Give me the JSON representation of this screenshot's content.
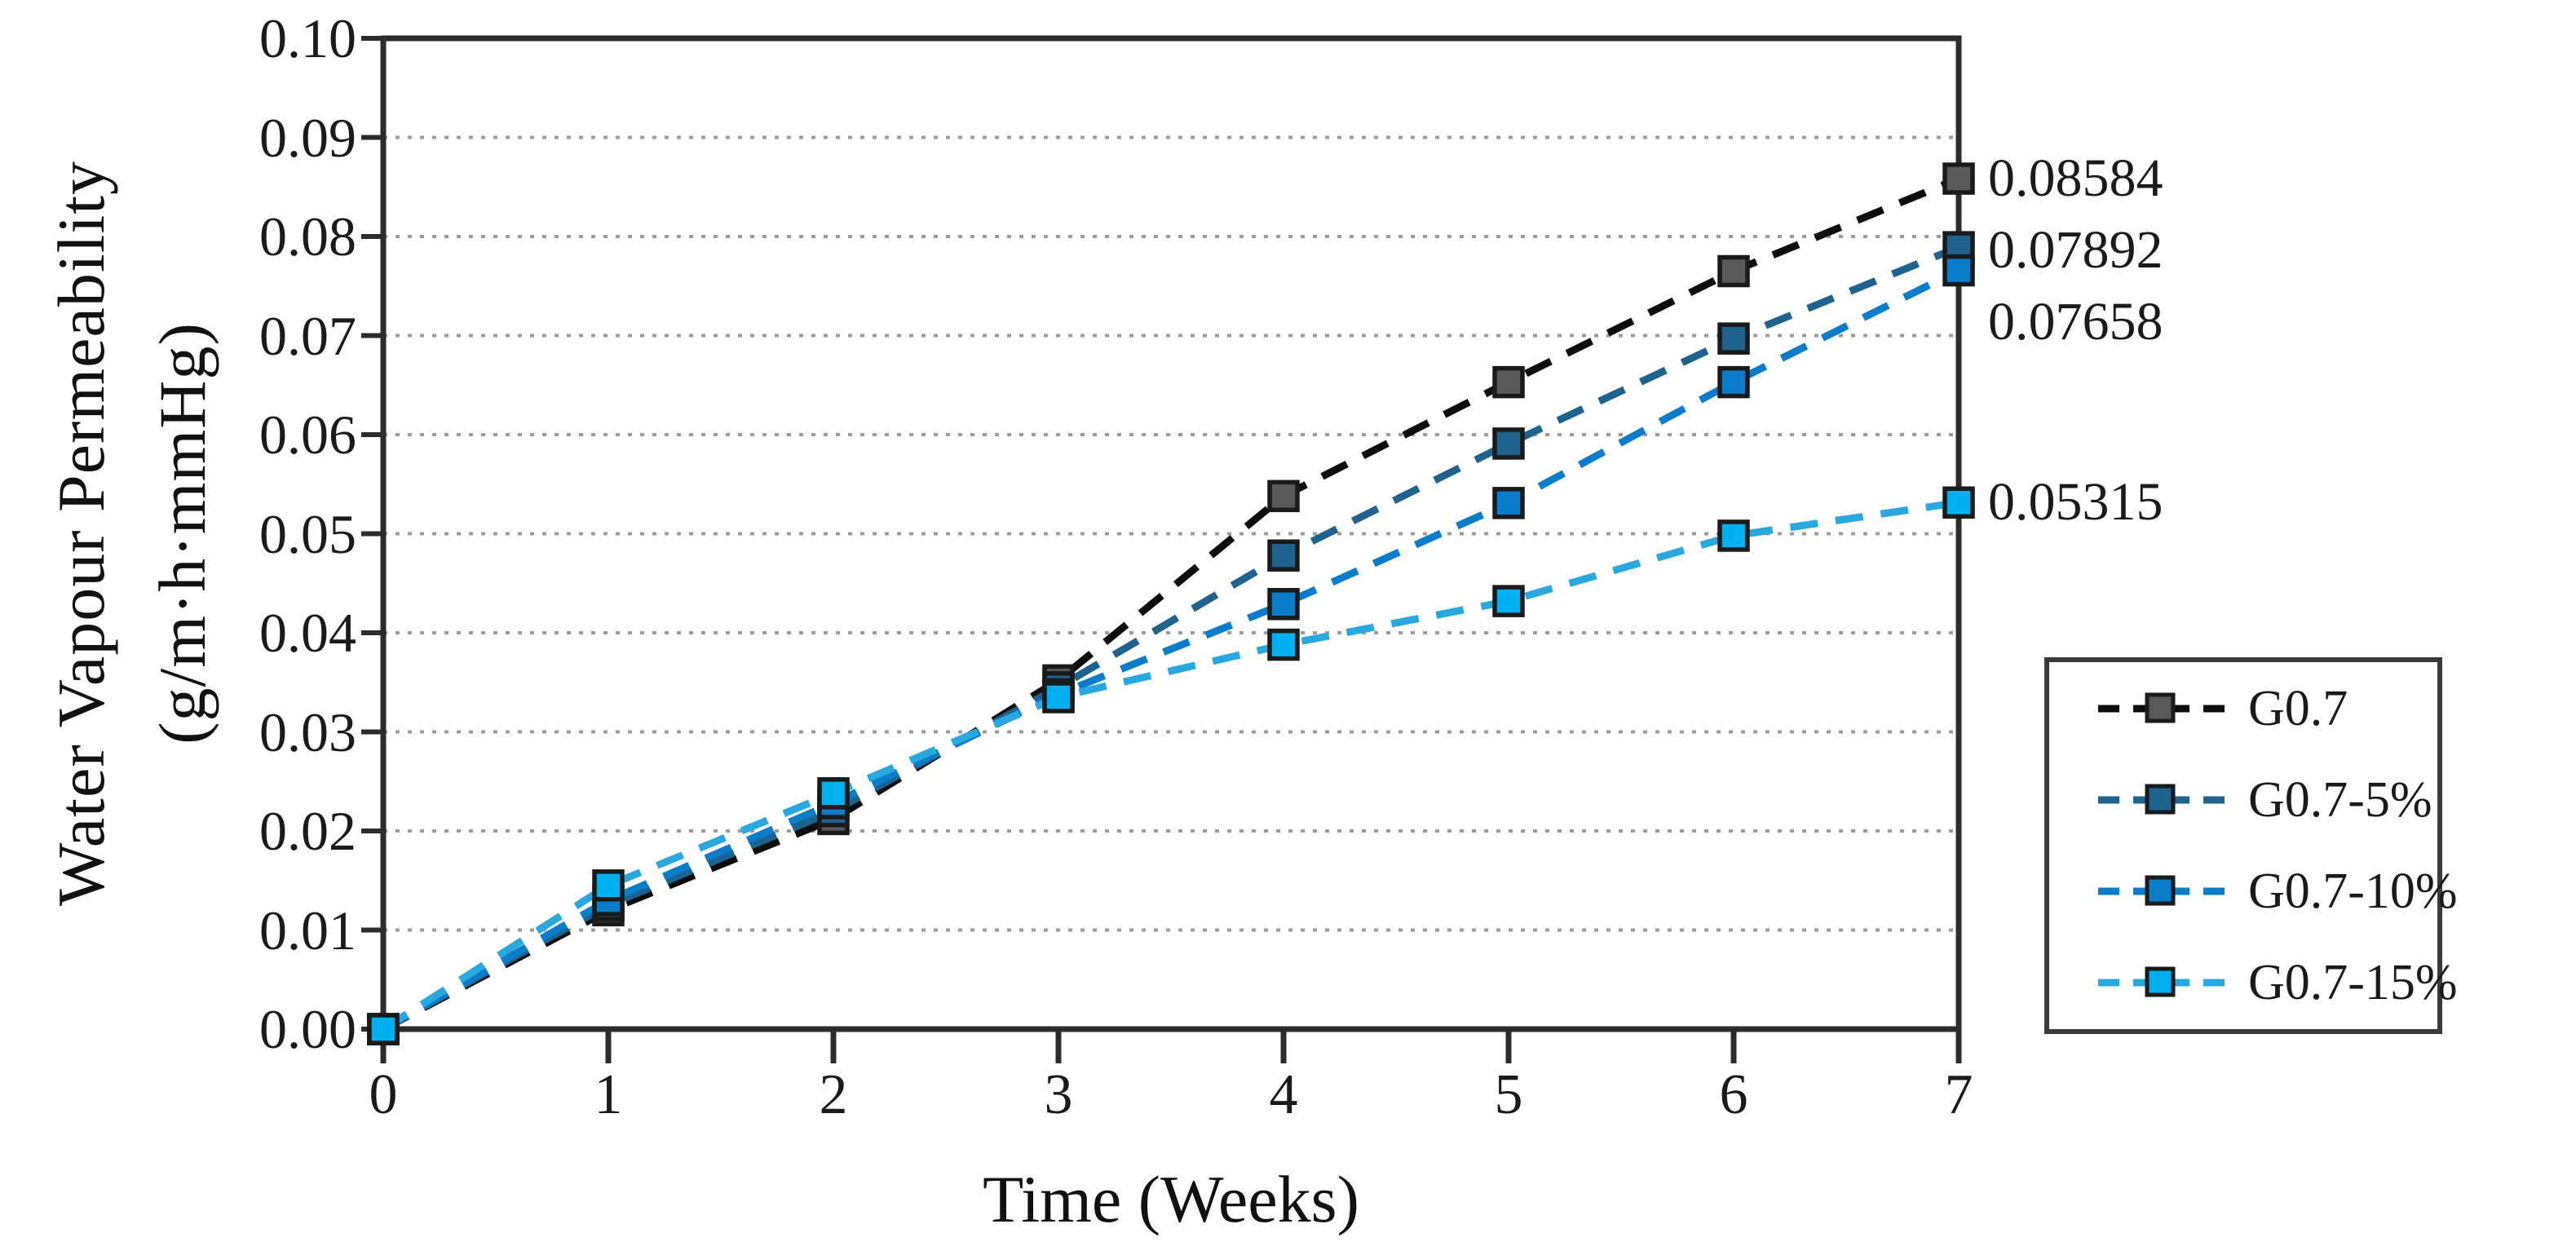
{
  "chart_data": {
    "type": "line",
    "title": "",
    "xlabel": "Time (Weeks)",
    "ylabel_line1": "Water Vapour Permeability",
    "ylabel_line2": "(g/m·h·mmHg)",
    "x": [
      0,
      1,
      2,
      3,
      4,
      5,
      6,
      7
    ],
    "xlim": [
      0,
      7
    ],
    "ylim": [
      0.0,
      0.1
    ],
    "x_tick_labels": [
      "0",
      "1",
      "2",
      "3",
      "4",
      "5",
      "6",
      "7"
    ],
    "y_tick_labels": [
      "0.00",
      "0.01",
      "0.02",
      "0.03",
      "0.04",
      "0.05",
      "0.06",
      "0.07",
      "0.08",
      "0.09",
      "0.10"
    ],
    "grid": "horizontal-dotted",
    "legend_position": "outside-right-bottom",
    "series": [
      {
        "name": "G0.7",
        "line_color": "#0d0d0d",
        "marker_color": "#595959",
        "values": [
          0.0,
          0.012,
          0.0212,
          0.0352,
          0.0538,
          0.0653,
          0.0765,
          0.08584
        ],
        "end_label": "0.08584"
      },
      {
        "name": "G0.7-5%",
        "line_color": "#1F628E",
        "marker_color": "#1F628E",
        "values": [
          0.0,
          0.0125,
          0.022,
          0.0345,
          0.0478,
          0.0591,
          0.0697,
          0.07892
        ],
        "end_label": "0.07892"
      },
      {
        "name": "G0.7-10%",
        "line_color": "#0A7CC9",
        "marker_color": "#0A7CC9",
        "values": [
          0.0,
          0.013,
          0.0228,
          0.0338,
          0.0429,
          0.0531,
          0.0653,
          0.07658
        ],
        "end_label": "0.07658"
      },
      {
        "name": "G0.7-15%",
        "line_color": "#29A8E0",
        "marker_color": "#00B0F0",
        "values": [
          0.0,
          0.0145,
          0.0238,
          0.0335,
          0.0388,
          0.0432,
          0.0498,
          0.05315
        ],
        "end_label": "0.05315"
      }
    ],
    "colors": {
      "gridline": "#9b9b9b",
      "axis": "#2b2b2b",
      "marker_edge": "#1a1a1a",
      "legend_border": "#3a3a3a",
      "text": "#1a1a1a"
    }
  }
}
